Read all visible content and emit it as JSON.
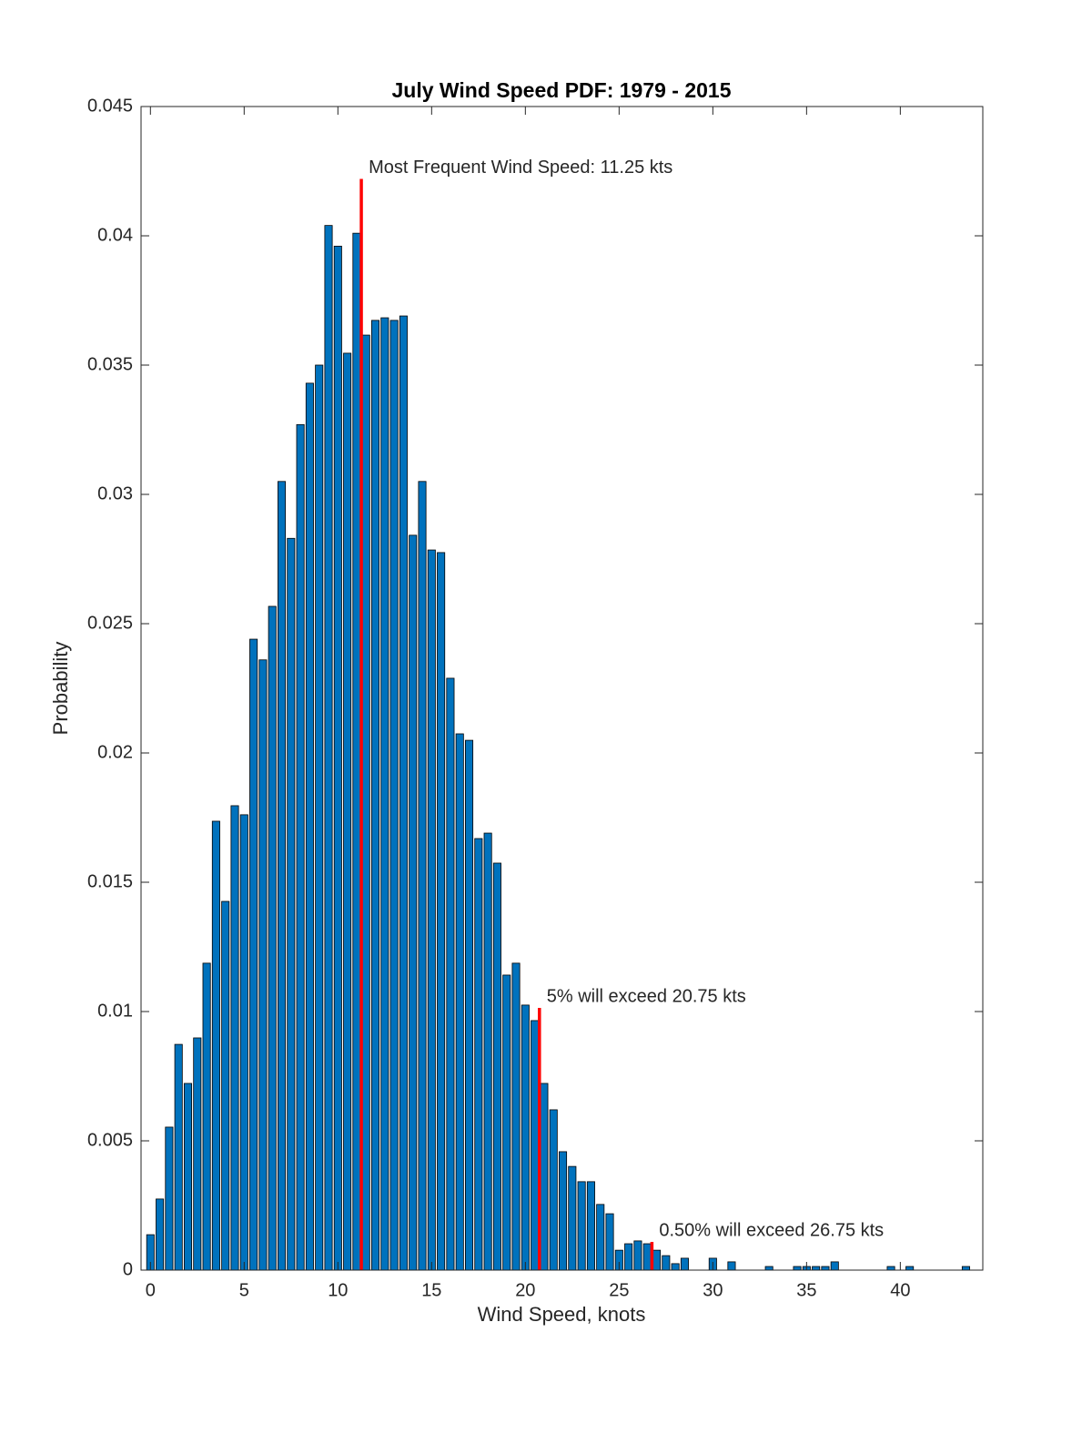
{
  "chart_data": {
    "type": "bar",
    "title": "July Wind Speed PDF: 1979 - 2015",
    "x_label": "Wind Speed, knots",
    "y_label": "Probability",
    "color": "#0072bd",
    "x": [
      0,
      0.5,
      1,
      1.5,
      2,
      2.5,
      3,
      3.5,
      4,
      4.5,
      5,
      5.5,
      6,
      6.5,
      7,
      7.5,
      8,
      8.5,
      9,
      9.5,
      10,
      10.5,
      11,
      11.5,
      12,
      12.5,
      13,
      13.5,
      14,
      14.5,
      15,
      15.5,
      16,
      16.5,
      17,
      17.5,
      18,
      18.5,
      19,
      19.5,
      20,
      20.5,
      21,
      21.5,
      22,
      22.5,
      23,
      23.5,
      24,
      24.5,
      25,
      25.5,
      26,
      26.5,
      27,
      27.5,
      28,
      28.5,
      29,
      29.5,
      30,
      30.5,
      31,
      31.5,
      32,
      32.5,
      33,
      33.5,
      34,
      34.5,
      35,
      35.5,
      36,
      36.5,
      37,
      37.5,
      38,
      38.5,
      39,
      39.5,
      40,
      40.5,
      41,
      41.5,
      42,
      42.5,
      43,
      43.5
    ],
    "values": [
      0.00137,
      0.00275,
      0.00553,
      0.00873,
      0.00722,
      0.00898,
      0.01187,
      0.01736,
      0.01426,
      0.01796,
      0.01761,
      0.0244,
      0.0236,
      0.02567,
      0.0305,
      0.0283,
      0.0327,
      0.0343,
      0.035,
      0.0404,
      0.0396,
      0.03546,
      0.0401,
      0.03616,
      0.03673,
      0.03683,
      0.03673,
      0.0369,
      0.02842,
      0.0305,
      0.02785,
      0.02775,
      0.02289,
      0.02074,
      0.02049,
      0.01669,
      0.0169,
      0.01574,
      0.01141,
      0.01187,
      0.01025,
      0.00965,
      0.00722,
      0.0062,
      0.00458,
      0.00401,
      0.00342,
      0.00342,
      0.00254,
      0.00218,
      0.00077,
      0.00102,
      0.00113,
      0.00102,
      0.00077,
      0.00056,
      0.00025,
      0.00046,
      0,
      0,
      0.00046,
      0,
      0.00032,
      0,
      0,
      0,
      0.00014,
      0,
      0,
      0.00014,
      0.00014,
      0.00014,
      0.00014,
      0.00032,
      0,
      0,
      0,
      0,
      0,
      0.00014,
      0,
      0.00014,
      0,
      0,
      0,
      0,
      0,
      0.00014
    ],
    "markers": [
      {
        "x": 11.25,
        "height": 0.0422,
        "color": "#ff0000",
        "label": "Most Frequent Wind Speed: 11.25 kts"
      },
      {
        "x": 20.75,
        "height": 0.01014,
        "color": "#ff0000",
        "label": "5% will exceed 20.75 kts"
      },
      {
        "x": 26.75,
        "height": 0.00109,
        "color": "#ff0000",
        "label": "0.50% will exceed 26.75 kts"
      }
    ],
    "xlim": [
      -0.5,
      44.4
    ],
    "ylim": [
      0,
      0.045
    ],
    "xticks": [
      0,
      5,
      10,
      15,
      20,
      25,
      30,
      35,
      40
    ],
    "yticks": [
      0,
      0.005,
      0.01,
      0.015,
      0.02,
      0.025,
      0.03,
      0.035,
      0.04,
      0.045
    ],
    "grid": false
  }
}
